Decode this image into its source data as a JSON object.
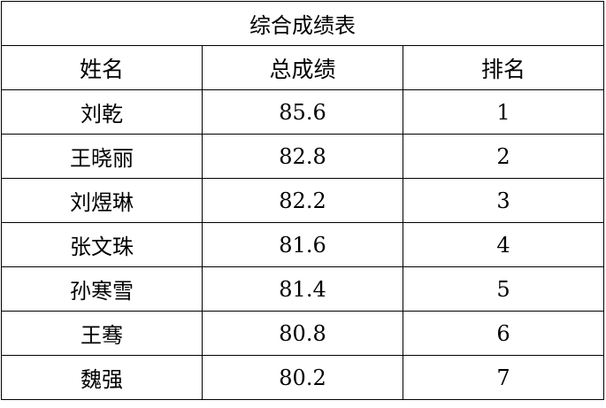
{
  "title": "综合成绩表",
  "headers": [
    "姓名",
    "总成绩",
    "排名"
  ],
  "rows": [
    [
      "刘乾",
      "85.6",
      "1"
    ],
    [
      "王晓丽",
      "82.8",
      "2"
    ],
    [
      "刘煜琳",
      "82.2",
      "3"
    ],
    [
      "张文珠",
      "81.6",
      "4"
    ],
    [
      "孙寒雪",
      "81.4",
      "5"
    ],
    [
      "王骞",
      "80.8",
      "6"
    ],
    [
      "魏强",
      "80.2",
      "7"
    ]
  ]
}
